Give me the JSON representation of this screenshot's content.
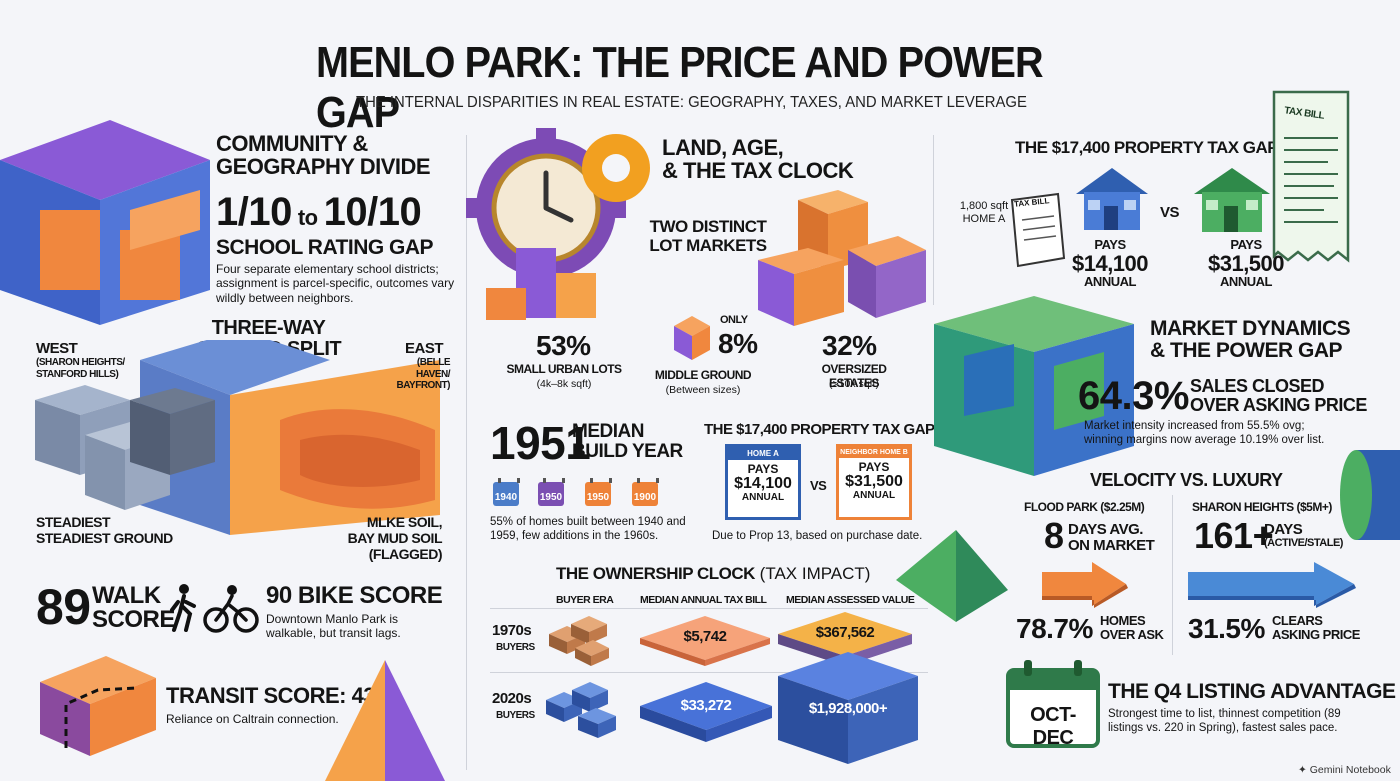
{
  "header": {
    "title": "MENLO PARK: THE PRICE AND POWER GAP",
    "subtitle": "THE INTERNAL DISPARITIES IN REAL ESTATE: GEOGRAPHY, TAXES, AND MARKET LEVERAGE"
  },
  "community": {
    "title_line1": "COMMUNITY &",
    "title_line2": "GEOGRAPHY DIVIDE",
    "rating_low": "1/10",
    "rating_to": "to",
    "rating_high": "10/10",
    "rating_label": "SCHOOL RATING GAP",
    "desc": "Four separate elementary school districts; assignment is parcel-specific, outcomes vary wildly between neighbors."
  },
  "ground": {
    "title_line1": "THREE-WAY",
    "title_line2": "GROUND SPLIT",
    "west_label": "WEST",
    "west_sub": "(SHARON HEIGHTS/ STANFORD HILLS)",
    "east_label": "EAST",
    "east_sub": "(BELLE HAVEN/ BAYFRONT)",
    "steady_line1": "STEADIEST",
    "steady_line2": "STEADIEST GROUND",
    "mud_line1": "MLKE SOIL,",
    "mud_line2": "BAY MUD SOIL (FLAGGED)"
  },
  "scores": {
    "walk_value": "89",
    "walk_label1": "WALK",
    "walk_label2": "SCORE",
    "bike_label": "90 BIKE SCORE",
    "bike_desc": "Downtown Manlo Park is walkable, but transit lags.",
    "transit_label": "TRANSIT SCORE: 43",
    "transit_desc": "Reliance on Caltrain connection."
  },
  "land": {
    "title_line1": "LAND, AGE,",
    "title_line2": "& THE TAX CLOCK",
    "lots_line1": "TWO DISTINCT",
    "lots_line2": "LOT MARKETS",
    "small_pct": "53%",
    "small_label": "SMALL URBAN LOTS",
    "small_sub": "(4k–8k sqft)",
    "only": "ONLY",
    "middle_pct": "8%",
    "middle_label": "MIDDLE GROUND",
    "middle_sub": "(Between sizes)",
    "large_pct": "32%",
    "large_label": "OVERSIZED ESTATES",
    "large_sub": "(>10k sqft)"
  },
  "build": {
    "year": "1951",
    "label_line1": "MEDIAN",
    "label_line2": "BUILD YEAR",
    "cal1": "1940",
    "cal2": "1950",
    "cal3": "1950",
    "cal4": "1900",
    "desc": "55% of homes built between 1940 and 1959, few additions in the 1960s."
  },
  "taxgap_mid": {
    "title": "THE $17,400 PROPERTY TAX GAP",
    "home_a": "HOME A",
    "home_a_pays": "PAYS",
    "home_a_amount": "$14,100",
    "home_a_annual": "ANNUAL",
    "vs": "VS",
    "home_b": "NEIGHBOR HOME B",
    "home_b_pays": "PAYS",
    "home_b_amount": "$31,500",
    "home_b_annual": "ANNUAL",
    "note": "Due to Prop 13, based on purchase date."
  },
  "ownership": {
    "title_bold": "THE OWNERSHIP CLOCK",
    "title_light": "(TAX IMPACT)",
    "col1": "BUYER ERA",
    "col2": "MEDIAN ANNUAL TAX BILL",
    "col3": "MEDIAN ASSESSED VALUE",
    "row1_era": "1970s",
    "row1_sub": "BUYERS",
    "row1_tax": "$5,742",
    "row1_value": "$367,562",
    "row2_era": "2020s",
    "row2_sub": "BUYERS",
    "row2_tax": "$33,272",
    "row2_value": "$1,928,000+"
  },
  "taxgap_right": {
    "title": "THE $17,400 PROPERTY TAX GAP",
    "tax_bill": "TAX BILL",
    "home_a_size": "1,800 sqft",
    "home_a": "HOME A",
    "vs": "VS",
    "pays_a": "PAYS",
    "amount_a": "$14,100",
    "annual_a": "ANNUAL",
    "pays_b": "PAYS",
    "amount_b": "$31,500",
    "annual_b": "ANNUAL"
  },
  "market": {
    "title_line1": "MARKET DYNAMICS",
    "title_line2": "& THE POWER GAP",
    "pct": "64.3%",
    "pct_label1": "SALES CLOSED",
    "pct_label2": "OVER ASKING PRICE",
    "desc": "Market intensity increased from 55.5% ovg; winning margins now average 10.19% over list."
  },
  "velocity": {
    "title": "VELOCITY VS. LUXURY",
    "left_label": "FLOOD PARK ($2.25M)",
    "left_days": "8",
    "left_days_label1": "DAYS AVG.",
    "left_days_label2": "ON MARKET",
    "left_pct": "78.7%",
    "left_pct_label1": "HOMES",
    "left_pct_label2": "OVER ASK",
    "right_label": "SHARON HEIGHTS ($5M+)",
    "right_days": "161+",
    "right_days_label1": "DAYS",
    "right_days_label2": "(ACTIVE/STALE)",
    "right_pct": "31.5%",
    "right_pct_label1": "CLEARS",
    "right_pct_label2": "ASKING PRICE"
  },
  "q4": {
    "calendar_text": "OCT-DEC",
    "title": "THE Q4 LISTING ADVANTAGE",
    "desc": "Strongest time to list, thinnest competition (89 listings vs. 220 in Spring), fastest sales pace."
  },
  "footer": {
    "brand": "Gemini Notebook"
  }
}
